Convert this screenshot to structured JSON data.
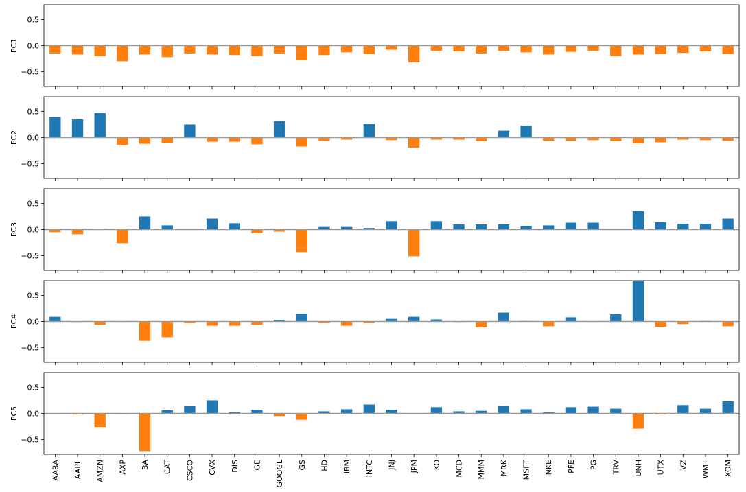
{
  "chart_data": {
    "type": "bar",
    "ylim": [
      -0.78,
      0.78
    ],
    "yticks": [
      -0.5,
      0.0,
      0.5
    ],
    "ytick_labels": [
      "−0.5",
      "0.0",
      "0.5"
    ],
    "grid": false,
    "colors": {
      "positive": "#1f77b4",
      "negative": "#ff7f0e",
      "zero_line": "#999999"
    },
    "categories": [
      "AABA",
      "AAPL",
      "AMZN",
      "AXP",
      "BA",
      "CAT",
      "CSCO",
      "CVX",
      "DIS",
      "GE",
      "GOOGL",
      "GS",
      "HD",
      "IBM",
      "INTC",
      "JNJ",
      "JPM",
      "KO",
      "MCD",
      "MMM",
      "MRK",
      "MSFT",
      "NKE",
      "PFE",
      "PG",
      "TRV",
      "UNH",
      "UTX",
      "VZ",
      "WMT",
      "XOM"
    ],
    "series": [
      {
        "name": "PC1",
        "values": [
          -0.15,
          -0.17,
          -0.2,
          -0.3,
          -0.17,
          -0.22,
          -0.15,
          -0.17,
          -0.18,
          -0.2,
          -0.15,
          -0.28,
          -0.18,
          -0.13,
          -0.16,
          -0.08,
          -0.32,
          -0.1,
          -0.11,
          -0.15,
          -0.1,
          -0.13,
          -0.17,
          -0.12,
          -0.1,
          -0.2,
          -0.17,
          -0.16,
          -0.14,
          -0.11,
          -0.16
        ]
      },
      {
        "name": "PC2",
        "values": [
          0.39,
          0.35,
          0.47,
          -0.14,
          -0.12,
          -0.1,
          0.25,
          -0.08,
          -0.08,
          -0.13,
          0.31,
          -0.17,
          -0.06,
          -0.04,
          0.26,
          -0.05,
          -0.19,
          -0.04,
          -0.04,
          -0.07,
          0.13,
          0.23,
          -0.06,
          -0.06,
          -0.05,
          -0.07,
          -0.11,
          -0.09,
          -0.04,
          -0.05,
          -0.06
        ]
      },
      {
        "name": "PC3",
        "values": [
          -0.05,
          -0.09,
          0.01,
          -0.26,
          0.25,
          0.08,
          0.0,
          0.21,
          0.12,
          -0.07,
          -0.04,
          -0.43,
          0.05,
          0.05,
          0.03,
          0.16,
          -0.51,
          0.16,
          0.1,
          0.1,
          0.1,
          0.07,
          0.08,
          0.13,
          0.13,
          0.0,
          0.35,
          0.14,
          0.11,
          0.11,
          0.21
        ]
      },
      {
        "name": "PC4",
        "values": [
          0.09,
          -0.01,
          -0.06,
          0.0,
          -0.37,
          -0.3,
          -0.03,
          -0.08,
          -0.08,
          -0.06,
          0.03,
          0.15,
          -0.03,
          -0.08,
          -0.03,
          0.05,
          0.09,
          0.04,
          -0.01,
          -0.11,
          0.17,
          0.01,
          -0.09,
          0.08,
          0.0,
          0.14,
          0.78,
          -0.1,
          -0.05,
          0.01,
          -0.09
        ]
      },
      {
        "name": "PC5",
        "values": [
          0.0,
          -0.02,
          -0.27,
          -0.01,
          -0.72,
          0.06,
          0.14,
          0.25,
          0.02,
          0.07,
          -0.05,
          -0.12,
          0.04,
          0.08,
          0.17,
          0.07,
          0.0,
          0.12,
          0.04,
          0.05,
          0.14,
          0.08,
          0.02,
          0.12,
          0.13,
          0.09,
          -0.29,
          -0.02,
          0.16,
          0.09,
          0.23
        ]
      }
    ]
  }
}
